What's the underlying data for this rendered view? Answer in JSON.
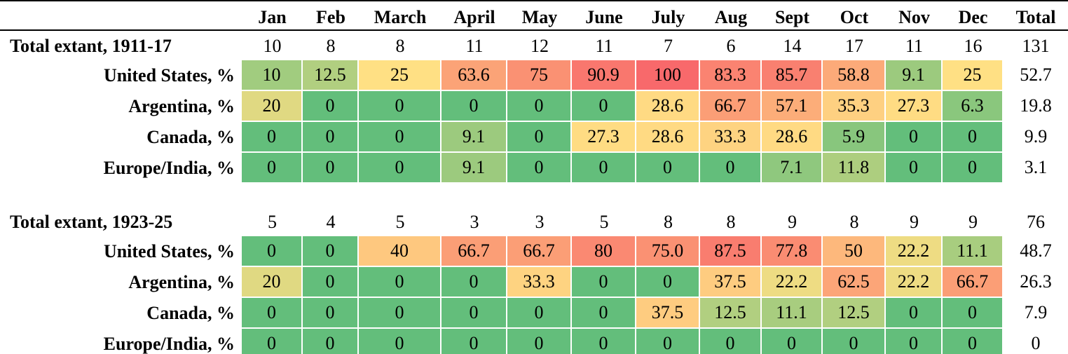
{
  "table": {
    "columns": [
      "Jan",
      "Feb",
      "March",
      "April",
      "May",
      "June",
      "July",
      "Aug",
      "Sept",
      "Oct",
      "Nov",
      "Dec",
      "Total"
    ],
    "blocks": [
      {
        "title": "Total extant, 1911-17",
        "totals": [
          "10",
          "8",
          "8",
          "11",
          "12",
          "11",
          "7",
          "6",
          "14",
          "17",
          "11",
          "16",
          "131"
        ],
        "rows": [
          {
            "label": "United States, %",
            "values": [
              "10",
              "12.5",
              "25",
              "63.6",
              "75",
              "90.9",
              "100",
              "83.3",
              "85.7",
              "58.8",
              "9.1",
              "25",
              "52.7"
            ]
          },
          {
            "label": "Argentina, %",
            "values": [
              "20",
              "0",
              "0",
              "0",
              "0",
              "0",
              "28.6",
              "66.7",
              "57.1",
              "35.3",
              "27.3",
              "6.3",
              "19.8"
            ]
          },
          {
            "label": "Canada, %",
            "values": [
              "0",
              "0",
              "0",
              "9.1",
              "0",
              "27.3",
              "28.6",
              "33.3",
              "28.6",
              "5.9",
              "0",
              "0",
              "9.9"
            ]
          },
          {
            "label": "Europe/India, %",
            "values": [
              "0",
              "0",
              "0",
              "9.1",
              "0",
              "0",
              "0",
              "0",
              "7.1",
              "11.8",
              "0",
              "0",
              "3.1"
            ]
          }
        ]
      },
      {
        "title": "Total extant, 1923-25",
        "totals": [
          "5",
          "4",
          "5",
          "3",
          "3",
          "5",
          "8",
          "8",
          "9",
          "8",
          "9",
          "9",
          "76"
        ],
        "rows": [
          {
            "label": "United States, %",
            "values": [
              "0",
              "0",
              "40",
              "66.7",
              "66.7",
              "80",
              "75.0",
              "87.5",
              "77.8",
              "50",
              "22.2",
              "11.1",
              "48.7"
            ]
          },
          {
            "label": "Argentina, %",
            "values": [
              "20",
              "0",
              "0",
              "0",
              "33.3",
              "0",
              "0",
              "37.5",
              "22.2",
              "62.5",
              "22.2",
              "66.7",
              "26.3"
            ]
          },
          {
            "label": "Canada, %",
            "values": [
              "0",
              "0",
              "0",
              "0",
              "0",
              "0",
              "37.5",
              "12.5",
              "11.1",
              "12.5",
              "0",
              "0",
              "7.9"
            ]
          },
          {
            "label": "Europe/India, %",
            "values": [
              "0",
              "0",
              "0",
              "0",
              "0",
              "0",
              "0",
              "0",
              "0",
              "0",
              "0",
              "0",
              "0"
            ]
          }
        ]
      }
    ]
  }
}
